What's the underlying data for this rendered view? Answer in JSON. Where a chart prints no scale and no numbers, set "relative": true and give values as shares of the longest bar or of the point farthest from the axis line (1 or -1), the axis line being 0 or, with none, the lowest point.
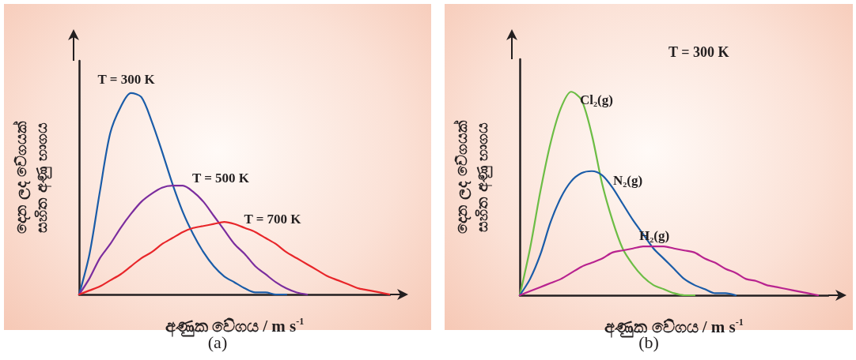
{
  "chart_data": [
    {
      "type": "line",
      "title": "(a)",
      "xlabel": "අණුක වේගය / m s$^{-1}$",
      "ylabel": "දෙන ලද වේගයක්\nසහිත අණු භාගය",
      "relative": true,
      "marker": "none",
      "line_style": "solid",
      "categories": [
        null,
        null,
        null,
        null,
        null,
        null,
        null,
        null,
        null,
        null,
        null,
        null,
        null,
        null,
        null,
        null,
        null,
        null,
        null,
        null,
        null,
        null,
        null,
        null,
        null,
        null,
        null,
        null,
        null,
        null,
        null
      ],
      "series": [
        {
          "name": "T = 300 K",
          "color": "#1a5ca8",
          "values": [
            0,
            0.2,
            0.51,
            0.8,
            0.93,
            1,
            0.98,
            0.86,
            0.71,
            0.55,
            0.41,
            0.3,
            0.21,
            0.14,
            0.09,
            0.06,
            0.03,
            0.01,
            0.01,
            0,
            0,
            null,
            null,
            null,
            null,
            null,
            null,
            null,
            null,
            null,
            null
          ]
        },
        {
          "name": "T = 500 K",
          "color": "#7b2d9e",
          "values": [
            0,
            0.08,
            0.18,
            0.25,
            0.33,
            0.4,
            0.46,
            0.5,
            0.53,
            0.54,
            0.54,
            0.51,
            0.46,
            0.39,
            0.32,
            0.25,
            0.2,
            0.14,
            0.1,
            0.06,
            0.03,
            0.01,
            0,
            null,
            null,
            null,
            null,
            null,
            null,
            null,
            null
          ]
        },
        {
          "name": "T = 700 K",
          "color": "#e8262a",
          "values": [
            0,
            0.02,
            0.04,
            0.07,
            0.1,
            0.14,
            0.18,
            0.21,
            0.25,
            0.28,
            0.31,
            0.33,
            0.34,
            0.35,
            0.36,
            0.35,
            0.33,
            0.31,
            0.28,
            0.25,
            0.21,
            0.18,
            0.15,
            0.12,
            0.09,
            0.07,
            0.05,
            0.03,
            0.02,
            0.01,
            0
          ]
        }
      ]
    },
    {
      "type": "line",
      "title": "(b)",
      "xlabel": "අණුක වේගය / m s$^{-1}$",
      "ylabel": "දෙන ලද වේගයක්\nසහිත අණු භාගය",
      "annotations": [
        "T = 300 K"
      ],
      "relative": true,
      "marker": "none",
      "line_style": "solid",
      "categories": [
        null,
        null,
        null,
        null,
        null,
        null,
        null,
        null,
        null,
        null,
        null,
        null,
        null,
        null,
        null,
        null,
        null,
        null,
        null,
        null,
        null,
        null,
        null,
        null,
        null,
        null,
        null,
        null,
        null,
        null,
        null
      ],
      "series": [
        {
          "name": "Cl₂(g)",
          "color": "#6cbd45",
          "values": [
            0,
            0.23,
            0.51,
            0.75,
            0.92,
            1,
            0.96,
            0.79,
            0.55,
            0.37,
            0.23,
            0.15,
            0.09,
            0.05,
            0.03,
            0.01,
            0,
            0,
            null,
            null,
            null,
            null,
            null,
            null,
            null,
            null,
            null,
            null,
            null,
            null,
            null
          ]
        },
        {
          "name": "N₂(g)",
          "color": "#1a5ca8",
          "values": [
            0,
            0.08,
            0.2,
            0.36,
            0.48,
            0.56,
            0.6,
            0.61,
            0.59,
            0.53,
            0.45,
            0.37,
            0.3,
            0.23,
            0.18,
            0.13,
            0.08,
            0.05,
            0.03,
            0.01,
            0.01,
            0,
            null,
            null,
            null,
            null,
            null,
            null,
            null,
            null,
            null
          ]
        },
        {
          "name": "H₂(g)",
          "color": "#b8238f",
          "values": [
            0,
            0.02,
            0.04,
            0.06,
            0.08,
            0.11,
            0.14,
            0.16,
            0.18,
            0.21,
            0.22,
            0.23,
            0.24,
            0.24,
            0.24,
            0.23,
            0.22,
            0.21,
            0.18,
            0.16,
            0.13,
            0.11,
            0.08,
            0.07,
            0.05,
            0.04,
            0.03,
            0.02,
            0.01,
            0,
            null
          ]
        }
      ]
    }
  ]
}
